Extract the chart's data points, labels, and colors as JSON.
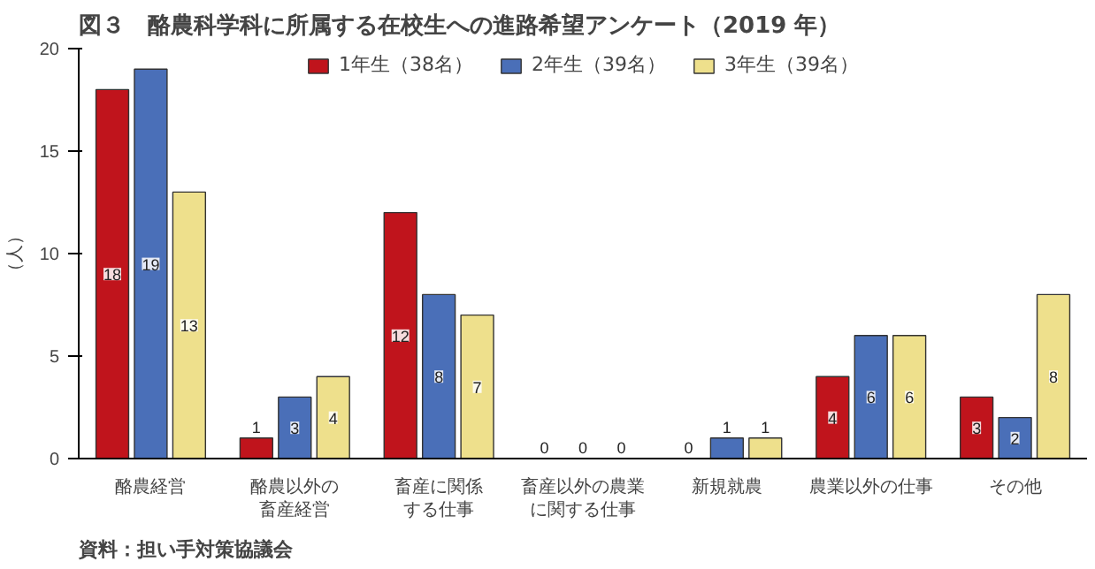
{
  "chart_data": {
    "type": "bar",
    "title": "図３　酪農科学科に所属する在校生への進路希望アンケート（2019 年）",
    "ylabel": "（人）",
    "categories": [
      "酪農経営",
      "酪農以外の畜産経営",
      "畜産に関係する仕事",
      "畜産以外の農業に関する仕事",
      "新規就農",
      "農業以外の仕事",
      "その他"
    ],
    "series": [
      {
        "name": "1年生（38名）",
        "color": "#c0141c",
        "values": [
          18,
          1,
          12,
          0,
          0,
          4,
          3
        ]
      },
      {
        "name": "2年生（39名）",
        "color": "#4a6fb8",
        "values": [
          19,
          3,
          8,
          0,
          1,
          6,
          2
        ]
      },
      {
        "name": "3年生（39名）",
        "color": "#eee08c",
        "values": [
          13,
          4,
          7,
          0,
          1,
          6,
          8
        ]
      }
    ],
    "ylim": [
      0,
      20
    ],
    "yticks": [
      0,
      5,
      10,
      15,
      20
    ],
    "data_labels": true,
    "legend": "top",
    "grid": false,
    "annotations": [
      "資料：担い手対策協議会"
    ]
  }
}
